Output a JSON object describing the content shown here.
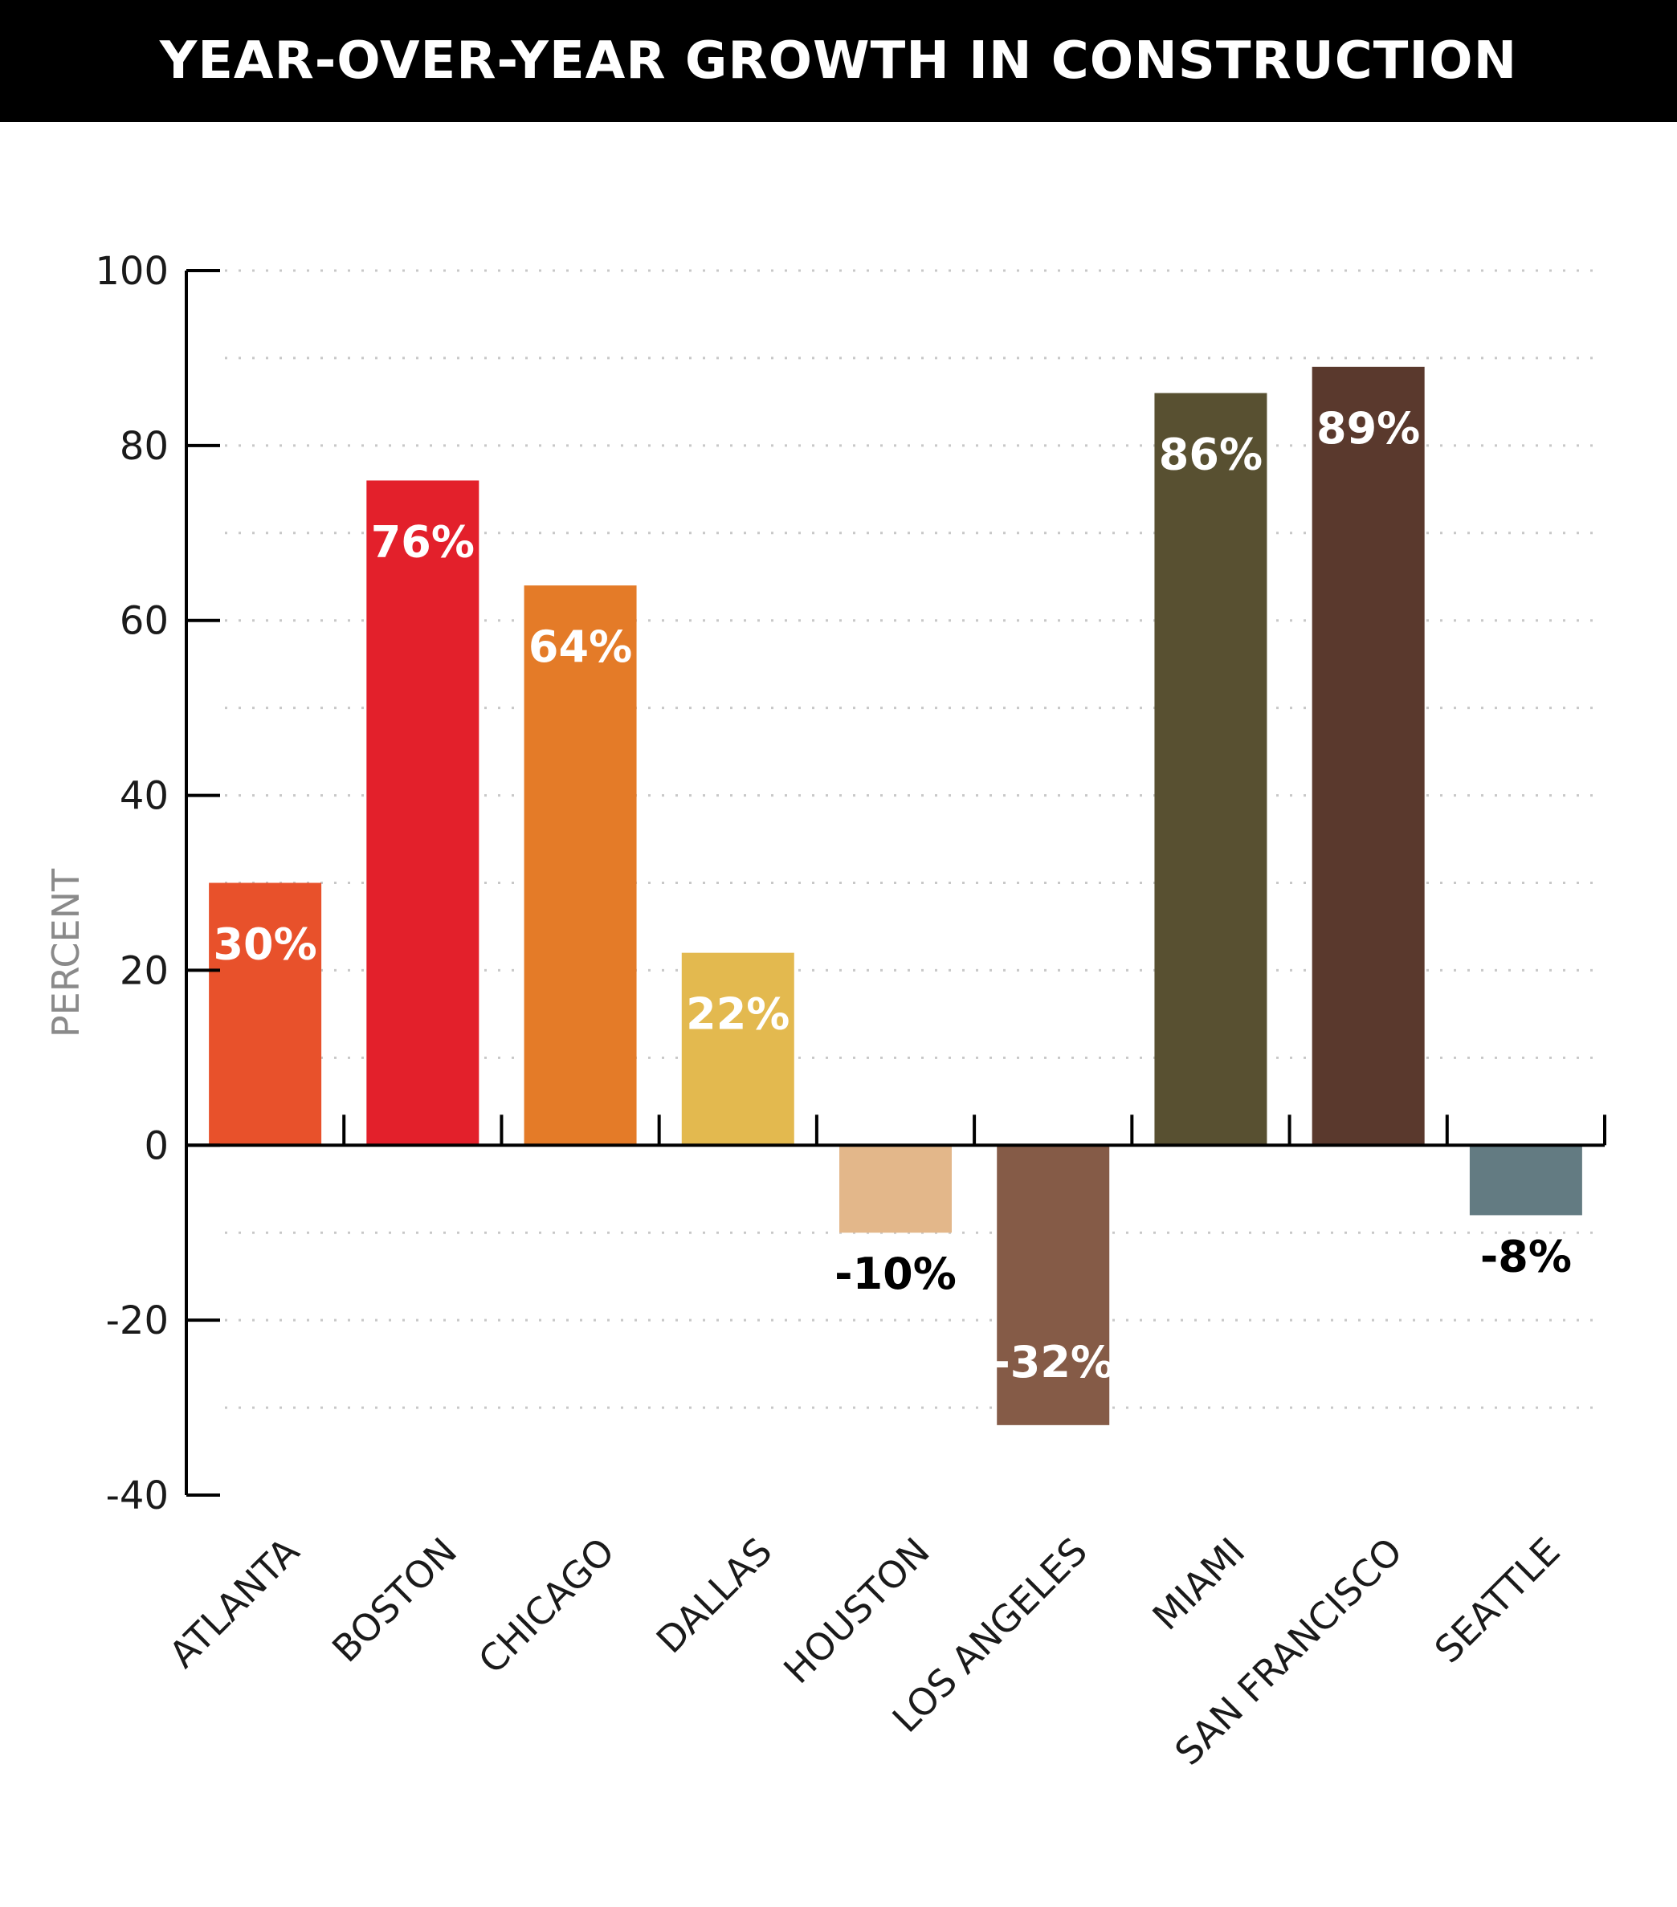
{
  "title": "YEAR-OVER-YEAR GROWTH IN CONSTRUCTION",
  "chart_data": {
    "type": "bar",
    "title": "YEAR-OVER-YEAR GROWTH IN CONSTRUCTION",
    "xlabel": "",
    "ylabel": "PERCENT",
    "ylim": [
      -40,
      100
    ],
    "yticks": [
      100,
      80,
      60,
      40,
      20,
      0,
      -20,
      -40
    ],
    "ytick_labels": [
      "100",
      "80",
      "60",
      "40",
      "20",
      "0",
      "-20",
      "-40"
    ],
    "grid": "dotted horizontal",
    "categories": [
      "ATLANTA",
      "BOSTON",
      "CHICAGO",
      "DALLAS",
      "HOUSTON",
      "LOS ANGELES",
      "MIAMI",
      "SAN FRANCISCO",
      "SEATTLE"
    ],
    "values": [
      30,
      76,
      64,
      22,
      -10,
      -32,
      86,
      89,
      -8
    ],
    "data_labels": [
      "30%",
      "76%",
      "64%",
      "22%",
      "-10%",
      "-32%",
      "86%",
      "89%",
      "-8%"
    ],
    "colors": [
      "#E8512B",
      "#E3202B",
      "#E47B28",
      "#E3B94F",
      "#E3B78A",
      "#855B47",
      "#585031",
      "#5A392D",
      "#637B82"
    ]
  }
}
